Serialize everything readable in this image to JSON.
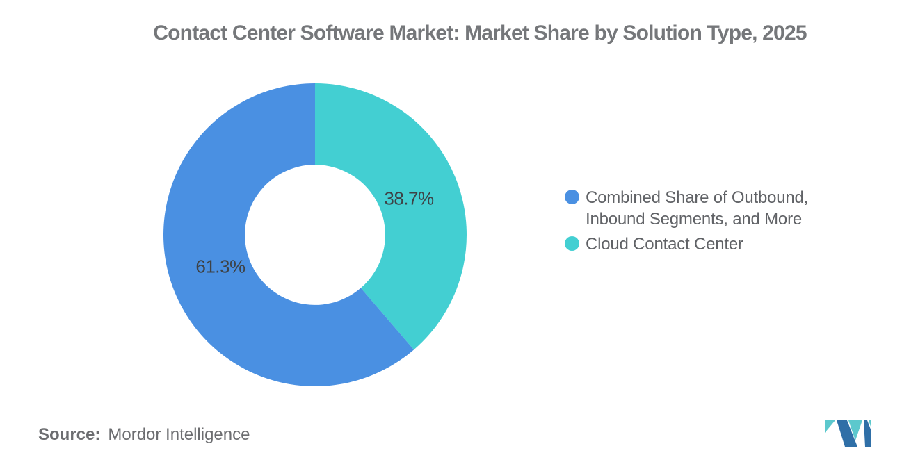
{
  "title": {
    "text": "Contact Center Software Market: Market Share by Solution Type, 2025",
    "color": "#75777A"
  },
  "chart_data": {
    "type": "pie",
    "subtype": "donut",
    "title": "Contact Center Software Market: Market Share by Solution Type, 2025",
    "unit": "%",
    "start_angle_deg": 0,
    "direction": "clockwise",
    "draw_order": [
      1,
      0
    ],
    "inner_radius_ratio": 0.463,
    "legend_position": "right",
    "label_color": "#3E4246",
    "slices": [
      {
        "label": "Combined Share of Outbound, Inbound Segments, and More",
        "value": 61.3,
        "display": "61.3%",
        "color": "#4A90E2"
      },
      {
        "label": "Cloud Contact Center",
        "value": 38.7,
        "display": "38.7%",
        "color": "#43CFD2"
      }
    ]
  },
  "legend": {
    "text_color": "#606266"
  },
  "source": {
    "prefix": "Source:",
    "name": "Mordor Intelligence"
  },
  "logo": {
    "alt": "Mordor Intelligence logo",
    "blue": "#2F6FA7",
    "teal": "#5CC8CD"
  }
}
